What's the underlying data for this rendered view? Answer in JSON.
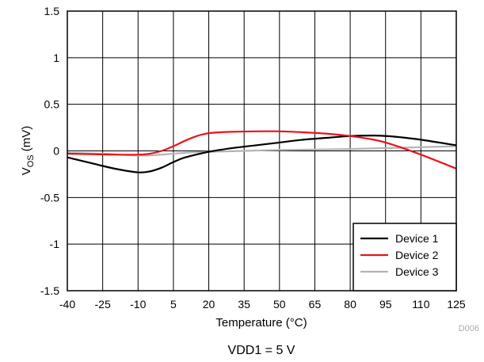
{
  "chart_data": {
    "type": "line",
    "x_label": "Temperature (°C)",
    "y_label_main": "V",
    "y_label_sub": "OS",
    "y_label_unit": " (mV)",
    "xlim": [
      -40,
      125
    ],
    "ylim": [
      -1.5,
      1.5
    ],
    "x_ticks": [
      "-40",
      "-25",
      "-10",
      "5",
      "20",
      "35",
      "50",
      "65",
      "80",
      "95",
      "110",
      "125"
    ],
    "y_ticks": [
      "1.5",
      "1",
      "0.5",
      "0",
      "-0.5",
      "-1",
      "-1.5"
    ],
    "grid": true,
    "legend_position": "bottom-right",
    "series": [
      {
        "name": "Device 1",
        "color": "#000000",
        "x": [
          -40,
          -30,
          -20,
          -10,
          -5,
          0,
          5,
          10,
          20,
          30,
          40,
          50,
          60,
          70,
          80,
          90,
          95,
          100,
          110,
          125
        ],
        "y": [
          -0.07,
          -0.13,
          -0.19,
          -0.23,
          -0.22,
          -0.18,
          -0.12,
          -0.07,
          -0.01,
          0.03,
          0.06,
          0.09,
          0.12,
          0.14,
          0.16,
          0.165,
          0.16,
          0.15,
          0.12,
          0.06
        ]
      },
      {
        "name": "Device 2",
        "color": "#e8131b",
        "x": [
          -40,
          -30,
          -20,
          -10,
          -5,
          0,
          5,
          10,
          15,
          20,
          25,
          30,
          40,
          50,
          60,
          70,
          80,
          90,
          95,
          100,
          110,
          125
        ],
        "y": [
          -0.03,
          -0.035,
          -0.04,
          -0.04,
          -0.03,
          0.0,
          0.05,
          0.11,
          0.16,
          0.19,
          0.2,
          0.205,
          0.21,
          0.21,
          0.2,
          0.185,
          0.16,
          0.12,
          0.09,
          0.05,
          -0.04,
          -0.19
        ]
      },
      {
        "name": "Device 3",
        "color": "#b4b4b4",
        "x": [
          -40,
          -25,
          -10,
          0,
          10,
          20,
          35,
          50,
          65,
          80,
          95,
          110,
          125
        ],
        "y": [
          -0.02,
          -0.03,
          -0.05,
          -0.04,
          -0.02,
          -0.01,
          0.0,
          0.01,
          0.015,
          0.02,
          0.03,
          0.04,
          0.05
        ]
      }
    ],
    "figure_code": "D006",
    "caption": "VDD1 = 5 V"
  }
}
